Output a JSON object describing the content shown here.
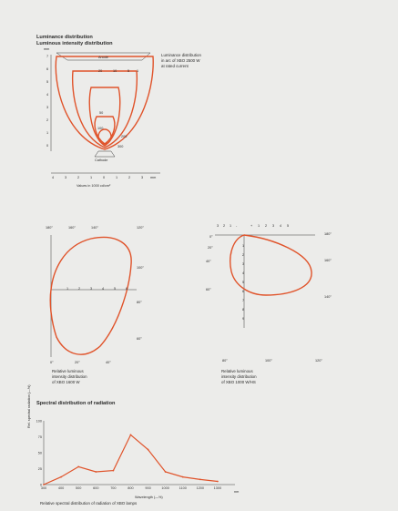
{
  "headings": {
    "luminance": "Luminance distribution",
    "intensity": "Luminous intensity distribution",
    "spectral": "Spectral distribution of radiation"
  },
  "luminance_panel": {
    "caption": [
      "Luminance distribution",
      "in arc of XBO 2500 W",
      "at rated current"
    ],
    "anode_label": "Anode",
    "cathode_label": "Cathode",
    "x_axis_title": "Values in 1000 cd/cm²",
    "y_unit": "mm",
    "y_ticks": [
      "7",
      "6",
      "5",
      "4",
      "3",
      "2",
      "1",
      "0"
    ],
    "x_ticks": [
      "4",
      "3",
      "2",
      "1",
      "0",
      "1",
      "2",
      "3"
    ],
    "x_unit": "mm",
    "contour_labels": [
      "20",
      "10",
      "5",
      "1",
      "50",
      "100",
      "200",
      "300"
    ]
  },
  "polar_left": {
    "top_angles": [
      "180°",
      "160°",
      "140°",
      "120°"
    ],
    "right_angles": [
      "100°",
      "80°",
      "60°"
    ],
    "bottom_angles": [
      "0°",
      "20°",
      "40°"
    ],
    "radial_ticks": [
      "1",
      "2",
      "3",
      "4",
      "5",
      "6"
    ],
    "caption": [
      "Relative luminous",
      "intensity distribution",
      "of XBO 1600 W"
    ]
  },
  "polar_right": {
    "top_ticks": [
      "3",
      "2",
      "1",
      "-",
      "+",
      "1",
      "2",
      "3",
      "4",
      "5"
    ],
    "left_angles": [
      "0°",
      "20°",
      "40°",
      "60°"
    ],
    "right_angles": [
      "180°",
      "160°",
      "140°"
    ],
    "bottom_angles": [
      "80°",
      "100°",
      "120°"
    ],
    "radial_ticks": [
      "1",
      "2",
      "3",
      "4",
      "5",
      "6",
      "7",
      "8",
      "9"
    ],
    "caption": [
      "Relative luminous",
      "intensity distribution",
      "of XBO 1000 W/HS"
    ]
  },
  "spectral_panel": {
    "y_label": "Rel. spectral radiation (—%)",
    "x_label": "Wavelength (—%)",
    "x_unit": "nm",
    "caption": "Relative spectral distribution of radiation of XBO lamps"
  },
  "colors": {
    "curve": "#e0532a",
    "ink": "#3a3a3a",
    "page": "#ececea"
  },
  "chart_data": {
    "type": "line",
    "title": "Spectral distribution of radiation",
    "xlabel": "Wavelength",
    "ylabel": "Rel. spectral radiation",
    "x": [
      300,
      400,
      500,
      600,
      700,
      800,
      900,
      1000,
      1100,
      1200,
      1300
    ],
    "xlim": [
      300,
      1400
    ],
    "ylim": [
      0,
      100
    ],
    "y_ticks": [
      0,
      25,
      50,
      75,
      100
    ],
    "series": [
      {
        "values": [
          0,
          12,
          28,
          20,
          22,
          78,
          55,
          20,
          12,
          8,
          5
        ]
      }
    ]
  }
}
